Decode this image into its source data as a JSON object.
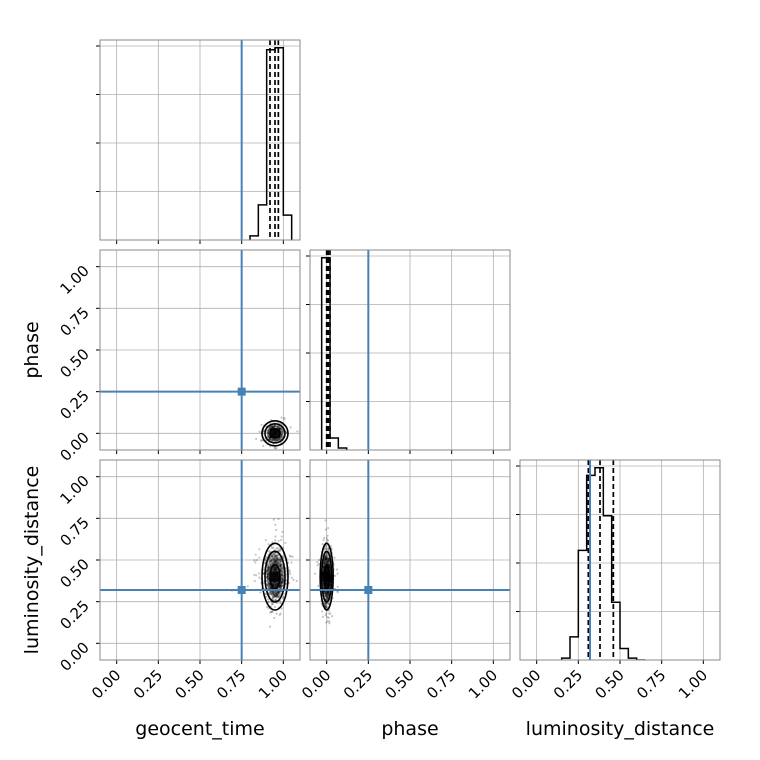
{
  "chart_data": {
    "type": "corner",
    "parameters": [
      "geocent_time",
      "phase",
      "luminosity_distance"
    ],
    "axis_range": [
      -0.1,
      1.1
    ],
    "ticks": [
      0.0,
      0.25,
      0.5,
      0.75,
      1.0
    ],
    "tick_labels": [
      "0.00",
      "0.25",
      "0.50",
      "0.75",
      "1.00"
    ],
    "grid": true,
    "colors": {
      "truth": "#4682b4",
      "samples": "#000000"
    },
    "truths": {
      "geocent_time": 0.75,
      "phase": 0.25,
      "luminosity_distance": 0.32
    },
    "posterior_center": {
      "geocent_time": 0.95,
      "phase": 0.0,
      "luminosity_distance": 0.4
    },
    "marginals": [
      {
        "parameter": "geocent_time",
        "bin_edges": [
          0.8,
          0.85,
          0.9,
          0.95,
          1.0,
          1.05
        ],
        "density": [
          0.02,
          0.17,
          0.92,
          0.93,
          0.12
        ],
        "quantiles": [
          0.92,
          0.95,
          0.97
        ]
      },
      {
        "parameter": "phase",
        "bin_edges": [
          -0.03,
          0.02,
          0.07,
          0.12
        ],
        "density": [
          0.96,
          0.06,
          0.01
        ],
        "quantiles": [
          0.0,
          0.01,
          0.02
        ]
      },
      {
        "parameter": "luminosity_distance",
        "bin_edges": [
          0.15,
          0.2,
          0.25,
          0.3,
          0.35,
          0.4,
          0.45,
          0.5,
          0.55,
          0.6,
          0.65
        ],
        "density": [
          0.01,
          0.12,
          0.57,
          0.96,
          1.0,
          0.75,
          0.3,
          0.06,
          0.01,
          0.0
        ],
        "quantiles": [
          0.31,
          0.38,
          0.46
        ]
      }
    ],
    "joint": [
      {
        "x": "geocent_time",
        "y": "phase",
        "spread_x": 0.03,
        "spread_y": 0.03,
        "n_points": 320
      },
      {
        "x": "geocent_time",
        "y": "luminosity_distance",
        "spread_x": 0.03,
        "spread_y": 0.08,
        "n_points": 900
      },
      {
        "x": "phase",
        "y": "luminosity_distance",
        "spread_x": 0.015,
        "spread_y": 0.08,
        "n_points": 900
      }
    ]
  }
}
